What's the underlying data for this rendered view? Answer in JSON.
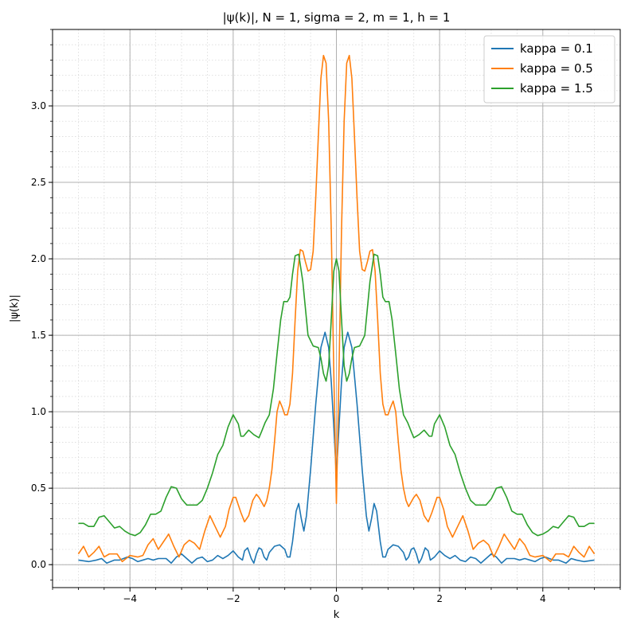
{
  "chart_data": {
    "type": "line",
    "title": "|ψ(k)|, N = 1, sigma = 2, m = 1, h = 1",
    "xlabel": "k",
    "ylabel": "|ψ(k)|",
    "xlim": [
      -5.5,
      5.5
    ],
    "ylim": [
      -0.15,
      3.5
    ],
    "xticks": [
      -4,
      -2,
      0,
      2,
      4
    ],
    "xtick_labels": [
      "−4",
      "−2",
      "0",
      "2",
      "4"
    ],
    "yticks": [
      0.0,
      0.5,
      1.0,
      1.5,
      2.0,
      2.5,
      3.0
    ],
    "ytick_labels": [
      "0.0",
      "0.5",
      "1.0",
      "1.5",
      "2.0",
      "2.5",
      "3.0"
    ],
    "grid": {
      "major": true,
      "minor": true
    },
    "legend": {
      "position": "top-right"
    },
    "series": [
      {
        "name": "kappa = 0.1",
        "color": "#1f77b4",
        "points": [
          [
            0.0,
            0.58
          ],
          [
            0.05,
            0.9
          ],
          [
            0.1,
            1.2
          ],
          [
            0.15,
            1.42
          ],
          [
            0.22,
            1.52
          ],
          [
            0.3,
            1.42
          ],
          [
            0.4,
            1.05
          ],
          [
            0.5,
            0.62
          ],
          [
            0.58,
            0.32
          ],
          [
            0.63,
            0.22
          ],
          [
            0.68,
            0.3
          ],
          [
            0.73,
            0.4
          ],
          [
            0.78,
            0.35
          ],
          [
            0.85,
            0.15
          ],
          [
            0.9,
            0.05
          ],
          [
            0.95,
            0.05
          ],
          [
            1.0,
            0.1
          ],
          [
            1.1,
            0.13
          ],
          [
            1.2,
            0.12
          ],
          [
            1.3,
            0.08
          ],
          [
            1.35,
            0.03
          ],
          [
            1.4,
            0.05
          ],
          [
            1.45,
            0.1
          ],
          [
            1.5,
            0.11
          ],
          [
            1.55,
            0.07
          ],
          [
            1.6,
            0.01
          ],
          [
            1.65,
            0.04
          ],
          [
            1.72,
            0.11
          ],
          [
            1.78,
            0.09
          ],
          [
            1.82,
            0.03
          ],
          [
            1.9,
            0.05
          ],
          [
            2.0,
            0.09
          ],
          [
            2.1,
            0.06
          ],
          [
            2.2,
            0.04
          ],
          [
            2.3,
            0.06
          ],
          [
            2.4,
            0.03
          ],
          [
            2.5,
            0.02
          ],
          [
            2.6,
            0.05
          ],
          [
            2.7,
            0.04
          ],
          [
            2.8,
            0.01
          ],
          [
            2.9,
            0.04
          ],
          [
            3.0,
            0.07
          ],
          [
            3.1,
            0.05
          ],
          [
            3.2,
            0.01
          ],
          [
            3.3,
            0.04
          ],
          [
            3.45,
            0.04
          ],
          [
            3.55,
            0.03
          ],
          [
            3.65,
            0.04
          ],
          [
            3.75,
            0.03
          ],
          [
            3.85,
            0.02
          ],
          [
            3.95,
            0.04
          ],
          [
            4.05,
            0.05
          ],
          [
            4.2,
            0.03
          ],
          [
            4.3,
            0.03
          ],
          [
            4.45,
            0.01
          ],
          [
            4.55,
            0.04
          ],
          [
            4.65,
            0.03
          ],
          [
            4.8,
            0.02
          ],
          [
            5.0,
            0.03
          ]
        ]
      },
      {
        "name": "kappa = 0.5",
        "color": "#ff7f0e",
        "points": [
          [
            0.0,
            0.4
          ],
          [
            0.05,
            1.25
          ],
          [
            0.1,
            2.2
          ],
          [
            0.15,
            2.9
          ],
          [
            0.2,
            3.28
          ],
          [
            0.25,
            3.33
          ],
          [
            0.3,
            3.18
          ],
          [
            0.35,
            2.8
          ],
          [
            0.4,
            2.4
          ],
          [
            0.45,
            2.05
          ],
          [
            0.5,
            1.93
          ],
          [
            0.55,
            1.92
          ],
          [
            0.6,
            1.98
          ],
          [
            0.65,
            2.05
          ],
          [
            0.7,
            2.06
          ],
          [
            0.75,
            1.92
          ],
          [
            0.8,
            1.6
          ],
          [
            0.85,
            1.25
          ],
          [
            0.9,
            1.05
          ],
          [
            0.95,
            0.98
          ],
          [
            1.0,
            0.98
          ],
          [
            1.05,
            1.03
          ],
          [
            1.1,
            1.07
          ],
          [
            1.15,
            1.0
          ],
          [
            1.2,
            0.8
          ],
          [
            1.25,
            0.62
          ],
          [
            1.3,
            0.5
          ],
          [
            1.35,
            0.42
          ],
          [
            1.4,
            0.38
          ],
          [
            1.5,
            0.44
          ],
          [
            1.55,
            0.46
          ],
          [
            1.62,
            0.42
          ],
          [
            1.7,
            0.32
          ],
          [
            1.78,
            0.28
          ],
          [
            1.85,
            0.34
          ],
          [
            1.95,
            0.44
          ],
          [
            2.0,
            0.44
          ],
          [
            2.08,
            0.36
          ],
          [
            2.15,
            0.25
          ],
          [
            2.25,
            0.18
          ],
          [
            2.35,
            0.25
          ],
          [
            2.45,
            0.32
          ],
          [
            2.55,
            0.22
          ],
          [
            2.65,
            0.1
          ],
          [
            2.75,
            0.14
          ],
          [
            2.85,
            0.16
          ],
          [
            2.95,
            0.13
          ],
          [
            3.05,
            0.05
          ],
          [
            3.15,
            0.12
          ],
          [
            3.25,
            0.2
          ],
          [
            3.35,
            0.15
          ],
          [
            3.45,
            0.1
          ],
          [
            3.55,
            0.17
          ],
          [
            3.65,
            0.13
          ],
          [
            3.75,
            0.06
          ],
          [
            3.85,
            0.05
          ],
          [
            4.0,
            0.06
          ],
          [
            4.15,
            0.02
          ],
          [
            4.25,
            0.07
          ],
          [
            4.4,
            0.07
          ],
          [
            4.5,
            0.05
          ],
          [
            4.6,
            0.12
          ],
          [
            4.7,
            0.08
          ],
          [
            4.8,
            0.05
          ],
          [
            4.9,
            0.12
          ],
          [
            5.0,
            0.07
          ]
        ]
      },
      {
        "name": "kappa = 1.5",
        "color": "#2ca02c",
        "points": [
          [
            0.0,
            2.0
          ],
          [
            0.05,
            1.92
          ],
          [
            0.1,
            1.6
          ],
          [
            0.15,
            1.3
          ],
          [
            0.2,
            1.2
          ],
          [
            0.25,
            1.25
          ],
          [
            0.3,
            1.35
          ],
          [
            0.35,
            1.42
          ],
          [
            0.45,
            1.43
          ],
          [
            0.55,
            1.5
          ],
          [
            0.65,
            1.85
          ],
          [
            0.73,
            2.03
          ],
          [
            0.8,
            2.02
          ],
          [
            0.85,
            1.9
          ],
          [
            0.9,
            1.75
          ],
          [
            0.95,
            1.72
          ],
          [
            1.02,
            1.72
          ],
          [
            1.08,
            1.6
          ],
          [
            1.15,
            1.38
          ],
          [
            1.22,
            1.15
          ],
          [
            1.3,
            0.98
          ],
          [
            1.38,
            0.93
          ],
          [
            1.45,
            0.87
          ],
          [
            1.5,
            0.83
          ],
          [
            1.6,
            0.85
          ],
          [
            1.7,
            0.88
          ],
          [
            1.8,
            0.84
          ],
          [
            1.85,
            0.84
          ],
          [
            1.9,
            0.92
          ],
          [
            2.0,
            0.98
          ],
          [
            2.1,
            0.9
          ],
          [
            2.2,
            0.78
          ],
          [
            2.3,
            0.72
          ],
          [
            2.4,
            0.6
          ],
          [
            2.5,
            0.5
          ],
          [
            2.6,
            0.42
          ],
          [
            2.7,
            0.39
          ],
          [
            2.8,
            0.39
          ],
          [
            2.9,
            0.39
          ],
          [
            3.0,
            0.43
          ],
          [
            3.1,
            0.5
          ],
          [
            3.2,
            0.51
          ],
          [
            3.3,
            0.44
          ],
          [
            3.4,
            0.35
          ],
          [
            3.5,
            0.33
          ],
          [
            3.6,
            0.33
          ],
          [
            3.7,
            0.26
          ],
          [
            3.8,
            0.21
          ],
          [
            3.9,
            0.19
          ],
          [
            4.0,
            0.2
          ],
          [
            4.1,
            0.22
          ],
          [
            4.2,
            0.25
          ],
          [
            4.3,
            0.24
          ],
          [
            4.4,
            0.28
          ],
          [
            4.5,
            0.32
          ],
          [
            4.6,
            0.31
          ],
          [
            4.7,
            0.25
          ],
          [
            4.8,
            0.25
          ],
          [
            4.9,
            0.27
          ],
          [
            5.0,
            0.27
          ]
        ]
      }
    ]
  }
}
